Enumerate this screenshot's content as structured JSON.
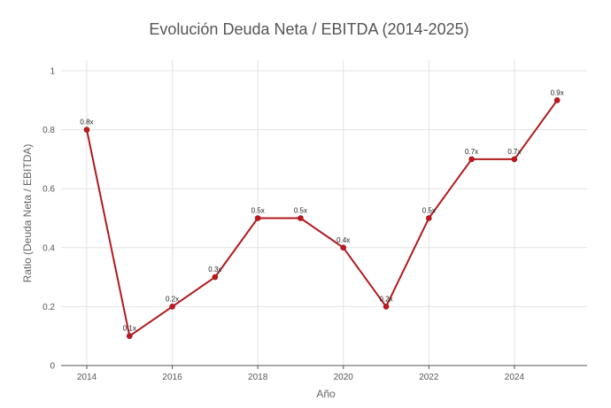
{
  "chart_data": {
    "type": "line",
    "title": "Evolución Deuda Neta / EBITDA (2014-2025)",
    "xlabel": "Año",
    "ylabel": "Ratio (Deuda Neta / EBITDA)",
    "x": [
      2014,
      2015,
      2016,
      2017,
      2018,
      2019,
      2020,
      2021,
      2022,
      2023,
      2024,
      2025
    ],
    "series": [
      {
        "values": [
          0.8,
          0.1,
          0.2,
          0.3,
          0.5,
          0.5,
          0.4,
          0.2,
          0.5,
          0.7,
          0.7,
          0.9
        ],
        "labels": [
          "0.8x",
          "0.1x",
          "0.2x",
          "0.3x",
          "0.5x",
          "0.5x",
          "0.4x",
          "0.2x",
          "0.5x",
          "0.7x",
          "0.7x",
          "0.9x"
        ]
      }
    ],
    "xlim": [
      2013.4,
      2025.7
    ],
    "ylim": [
      0,
      1
    ],
    "x_ticks": [
      2014,
      2016,
      2018,
      2020,
      2022,
      2024
    ],
    "x_tick_labels": [
      "2014",
      "2016",
      "2018",
      "2020",
      "2022",
      "2024"
    ],
    "y_ticks": [
      0,
      0.2,
      0.4,
      0.6,
      0.8,
      1
    ],
    "y_tick_labels": [
      "0",
      "0.2",
      "0.4",
      "0.6",
      "0.8",
      "1"
    ],
    "grid": true,
    "legend": "none",
    "colors": {
      "line": "#b0191e",
      "marker": "#c2181d",
      "grid": "#e3e3e3",
      "axis": "#555555"
    }
  }
}
